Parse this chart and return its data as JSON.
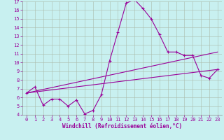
{
  "xlabel": "Windchill (Refroidissement éolien,°C)",
  "xlim": [
    -0.5,
    23.5
  ],
  "ylim": [
    4,
    17
  ],
  "yticks": [
    4,
    5,
    6,
    7,
    8,
    9,
    10,
    11,
    12,
    13,
    14,
    15,
    16,
    17
  ],
  "xticks": [
    0,
    1,
    2,
    3,
    4,
    5,
    6,
    7,
    8,
    9,
    10,
    11,
    12,
    13,
    14,
    15,
    16,
    17,
    18,
    19,
    20,
    21,
    22,
    23
  ],
  "bg_color": "#c8f0f0",
  "line_color": "#990099",
  "grid_color": "#aabbaa",
  "line1_x": [
    0,
    1,
    2,
    3,
    4,
    5,
    6,
    7,
    8,
    9,
    10,
    11,
    12,
    13,
    14,
    15,
    16,
    17,
    18,
    19,
    20,
    21,
    22,
    23
  ],
  "line1_y": [
    6.5,
    7.2,
    5.1,
    5.8,
    5.8,
    5.0,
    5.7,
    4.1,
    4.5,
    6.3,
    10.2,
    13.5,
    16.8,
    17.2,
    16.2,
    15.0,
    13.2,
    11.2,
    11.2,
    10.8,
    10.8,
    8.5,
    8.2,
    9.2
  ],
  "line2_x": [
    0,
    23
  ],
  "line2_y": [
    6.5,
    9.2
  ],
  "line3_x": [
    0,
    23
  ],
  "line3_y": [
    6.5,
    11.2
  ]
}
